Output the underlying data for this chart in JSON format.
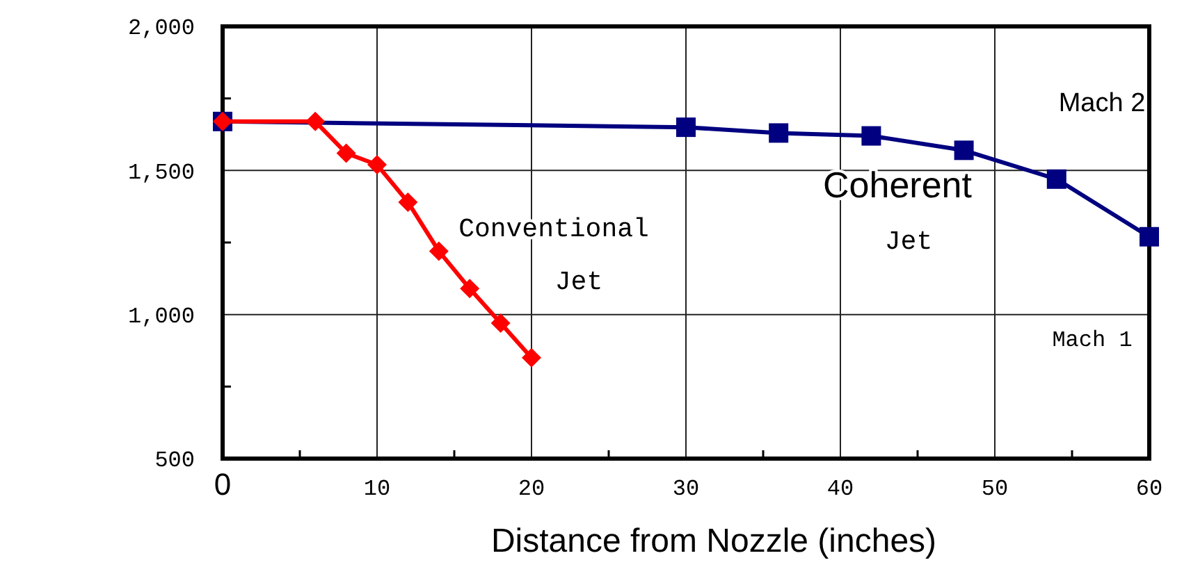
{
  "chart_data": {
    "type": "line",
    "xlabel": "Distance from Nozzle (inches)",
    "xlim": [
      0,
      60
    ],
    "xticks": [
      0,
      {
        "value": 5,
        "label": null
      },
      10,
      {
        "value": 15,
        "label": null
      },
      20,
      {
        "value": 25,
        "label": null
      },
      30,
      {
        "value": 35,
        "label": null
      },
      40,
      {
        "value": 45,
        "label": null
      },
      50,
      {
        "value": 55,
        "label": null
      },
      60
    ],
    "ylim": [
      500,
      2000
    ],
    "yticks": [
      {
        "value": 500,
        "label": "500"
      },
      {
        "value": 750,
        "label": null
      },
      {
        "value": 1000,
        "label": "1,000"
      },
      {
        "value": 1250,
        "label": null
      },
      {
        "value": 1500,
        "label": "1,500"
      },
      {
        "value": 1750,
        "label": null
      },
      {
        "value": 2000,
        "label": "2,000"
      }
    ],
    "grid": true,
    "line_style": "solid",
    "series": [
      {
        "name": "Coherent Jet",
        "color": "#000080",
        "marker": "square",
        "x": [
          0,
          30,
          36,
          42,
          48,
          54,
          60
        ],
        "values": [
          1670,
          1650,
          1630,
          1620,
          1570,
          1470,
          1270
        ]
      },
      {
        "name": "Conventional Jet",
        "color": "#ff0000",
        "marker": "diamond",
        "x": [
          0,
          6,
          8,
          10,
          12,
          14,
          16,
          18,
          20
        ],
        "values": [
          1670,
          1670,
          1560,
          1520,
          1390,
          1220,
          1090,
          970,
          850
        ]
      }
    ],
    "annotations": [
      "Mach 2",
      "Mach 1"
    ]
  }
}
